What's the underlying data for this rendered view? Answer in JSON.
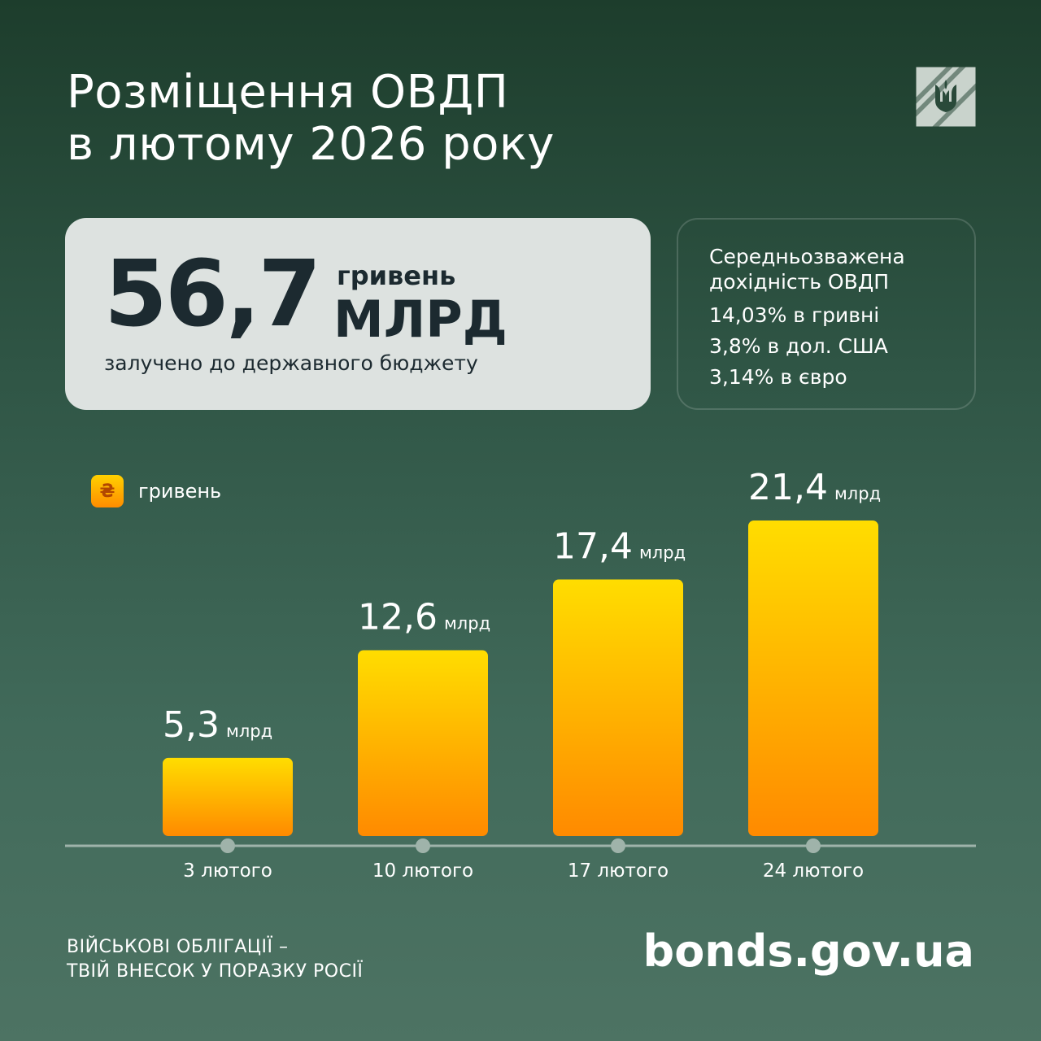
{
  "header": {
    "title_line1": "Розміщення ОВДП",
    "title_line2": "в лютому 2026 року",
    "logo_icon": "trident-emblem-icon"
  },
  "hero": {
    "amount": "56,7",
    "currency": "гривень",
    "unit": "млрд",
    "caption": "залучено до державного бюджету"
  },
  "yield": {
    "title_line1": "Середньозважена",
    "title_line2": "дохідність ОВДП",
    "lines": [
      "14,03% в гривні",
      "3,8% в дол. США",
      "3,14% в євро"
    ]
  },
  "legend": {
    "symbol": "₴",
    "label": "гривень"
  },
  "chart_data": {
    "type": "bar",
    "categories": [
      "3 лютого",
      "10 лютого",
      "17 лютого",
      "24 лютого"
    ],
    "series": [
      {
        "name": "гривень",
        "values": [
          5.3,
          12.6,
          17.4,
          21.4
        ]
      }
    ],
    "value_labels": [
      "5,3",
      "12,6",
      "17,4",
      "21,4"
    ],
    "value_unit": "млрд",
    "ylim": [
      0,
      21.4
    ],
    "grid": false,
    "legend_position": "top-left",
    "colors": {
      "bar_top": "#ffdd00",
      "bar_bottom": "#ff8a00",
      "axis": "#9fb3aa"
    }
  },
  "footer": {
    "slogan_line1": "ВІЙСЬКОВІ ОБЛІГАЦІЇ –",
    "slogan_line2": "ТВІЙ ВНЕСОК У ПОРАЗКУ РОСІЇ",
    "site": "bonds.gov.ua"
  },
  "colors": {
    "background_top": "#1d3d2c",
    "background_bottom": "#4d7363",
    "card": "#dde2e0",
    "card_text": "#1c2a30"
  }
}
